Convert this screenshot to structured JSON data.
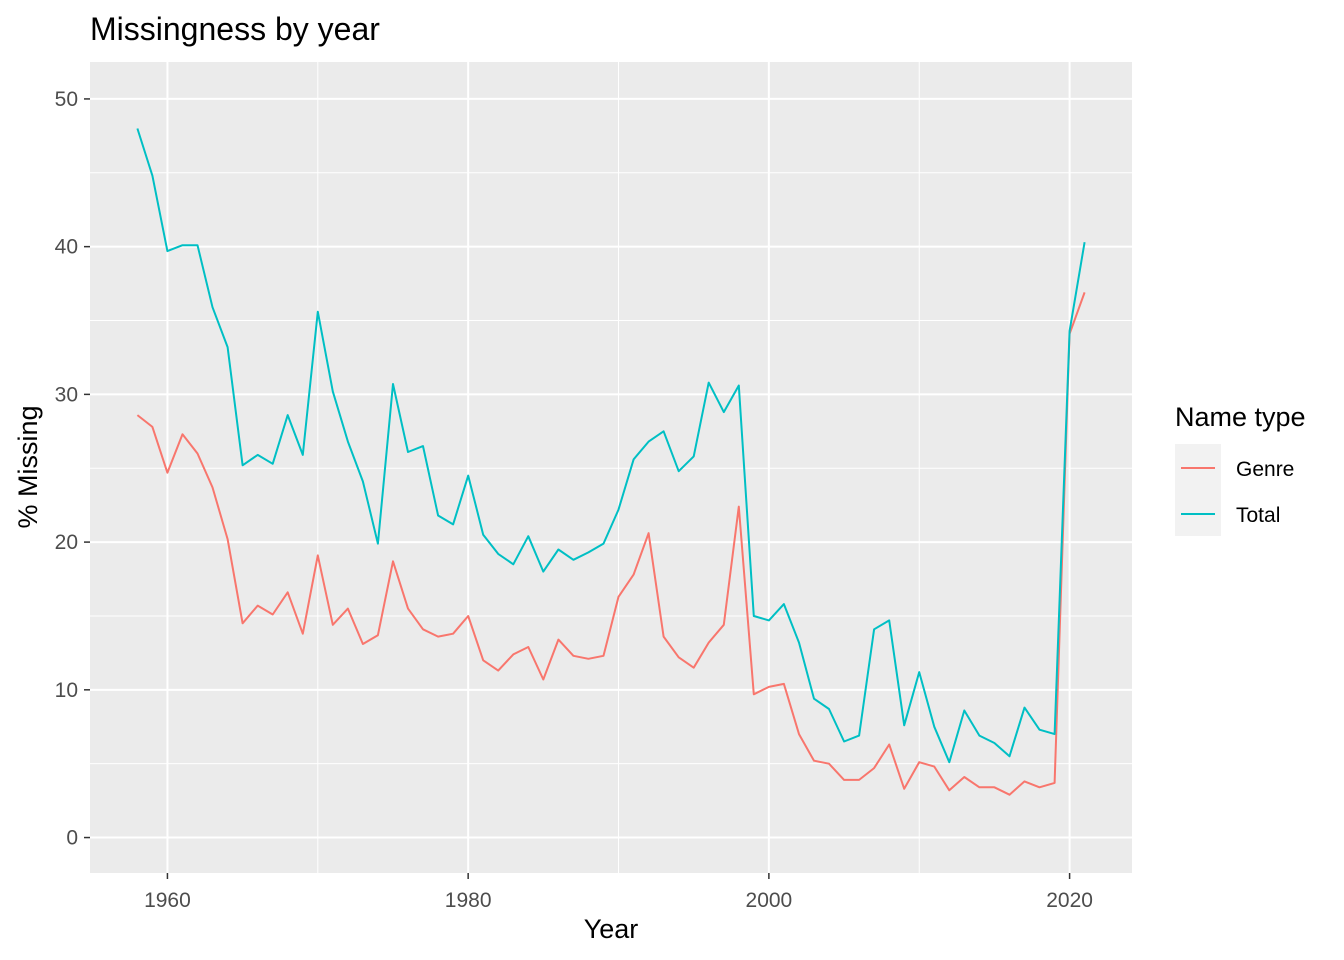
{
  "chart_data": {
    "type": "line",
    "title": "Missingness by year",
    "xlabel": "Year",
    "ylabel": "% Missing",
    "xlim": [
      1954.85,
      2024.15
    ],
    "ylim": [
      -2.4,
      52.5
    ],
    "x_ticks": [
      1960,
      1980,
      2000,
      2020
    ],
    "y_ticks": [
      0,
      10,
      20,
      30,
      40,
      50
    ],
    "grid": true,
    "legend": {
      "title": "Name type",
      "position": "right"
    },
    "colors": {
      "Genre": "#F8766D",
      "Total": "#00BFC4",
      "panel": "#EBEBEB",
      "grid": "#FFFFFF"
    },
    "x": [
      1958,
      1959,
      1960,
      1961,
      1962,
      1963,
      1964,
      1965,
      1966,
      1967,
      1968,
      1969,
      1970,
      1971,
      1972,
      1973,
      1974,
      1975,
      1976,
      1977,
      1978,
      1979,
      1980,
      1981,
      1982,
      1983,
      1984,
      1985,
      1986,
      1987,
      1988,
      1989,
      1990,
      1991,
      1992,
      1993,
      1994,
      1995,
      1996,
      1997,
      1998,
      1999,
      2000,
      2001,
      2002,
      2003,
      2004,
      2005,
      2006,
      2007,
      2008,
      2009,
      2010,
      2011,
      2012,
      2013,
      2014,
      2015,
      2016,
      2017,
      2018,
      2019,
      2020,
      2021
    ],
    "series": [
      {
        "name": "Genre",
        "values": [
          28.6,
          27.8,
          24.7,
          27.3,
          26.0,
          23.7,
          20.2,
          14.5,
          15.7,
          15.1,
          16.6,
          13.8,
          19.1,
          14.4,
          15.5,
          13.1,
          13.7,
          18.7,
          15.5,
          14.1,
          13.6,
          13.8,
          15.0,
          12.0,
          11.3,
          12.4,
          12.9,
          10.7,
          13.4,
          12.3,
          12.1,
          12.3,
          16.3,
          17.8,
          20.6,
          13.6,
          12.2,
          11.5,
          13.2,
          14.4,
          22.4,
          9.7,
          10.2,
          10.4,
          7.0,
          5.2,
          5.0,
          3.9,
          3.9,
          4.7,
          6.3,
          3.3,
          5.1,
          4.8,
          3.2,
          4.1,
          3.4,
          3.4,
          2.9,
          3.8,
          3.4,
          3.7,
          34.1,
          36.9
        ]
      },
      {
        "name": "Total",
        "values": [
          48.0,
          44.8,
          39.7,
          40.1,
          40.1,
          35.9,
          33.2,
          25.2,
          25.9,
          25.3,
          28.6,
          25.9,
          35.6,
          30.2,
          26.8,
          24.1,
          19.9,
          30.7,
          26.1,
          26.5,
          21.8,
          21.2,
          24.5,
          20.5,
          19.2,
          18.5,
          20.4,
          18.0,
          19.5,
          18.8,
          19.3,
          19.9,
          22.2,
          25.6,
          26.8,
          27.5,
          24.8,
          25.8,
          30.8,
          28.8,
          30.6,
          15.0,
          14.7,
          15.8,
          13.2,
          9.4,
          8.7,
          6.5,
          6.9,
          14.1,
          14.7,
          7.6,
          11.2,
          7.5,
          5.1,
          8.6,
          6.9,
          6.4,
          5.5,
          8.8,
          7.3,
          7.0,
          34.3,
          40.3
        ]
      }
    ]
  }
}
